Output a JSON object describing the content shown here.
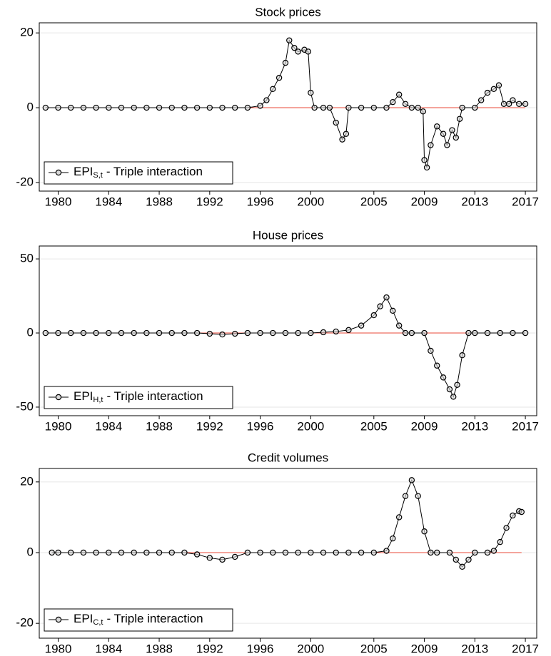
{
  "chart_data": [
    {
      "type": "line",
      "title": "Stock prices",
      "xlim": [
        1978.5,
        2017.9
      ],
      "xticks": [
        1980,
        1984,
        1988,
        1992,
        1996,
        2000,
        2005,
        2009,
        2013,
        2017
      ],
      "ylim": [
        -22.3,
        22.7
      ],
      "yticks": [
        -20,
        0,
        20
      ],
      "grid": true,
      "zero_line_color": "#e8483a",
      "legend": {
        "label": "EPI",
        "subscript": "S,t",
        "suffix": "- Triple interaction"
      },
      "series": [
        {
          "color": "#000000",
          "x": [
            1979,
            1980,
            1981,
            1982,
            1983,
            1984,
            1985,
            1986,
            1987,
            1988,
            1989,
            1990,
            1991,
            1992,
            1993,
            1994,
            1995,
            1996,
            1996.5,
            1997,
            1997.5,
            1998,
            1998.3,
            1998.7,
            1999,
            1999.5,
            1999.8,
            2000,
            2000.3,
            2001,
            2001.5,
            2002,
            2002.5,
            2002.8,
            2003,
            2004,
            2005,
            2006,
            2006.5,
            2007,
            2007.5,
            2008,
            2008.5,
            2008.9,
            2009,
            2009.2,
            2009.5,
            2010,
            2010.5,
            2010.8,
            2011.2,
            2011.5,
            2011.8,
            2012,
            2013,
            2013.5,
            2014,
            2014.5,
            2014.9,
            2015.3,
            2015.7,
            2016,
            2016.5,
            2017
          ],
          "values": [
            0,
            0,
            0,
            0,
            0,
            0,
            0,
            0,
            0,
            0,
            0,
            0,
            0,
            0,
            0,
            0,
            0,
            0.5,
            2,
            5,
            8,
            12,
            18,
            16,
            15,
            15.5,
            15,
            4,
            0,
            0,
            0,
            -4,
            -8.5,
            -7,
            0,
            0,
            0,
            0,
            1.5,
            3.5,
            1,
            0,
            0,
            -1,
            -14,
            -16,
            -10,
            -5,
            -7,
            -10,
            -6,
            -8,
            -3,
            0,
            0,
            2,
            4,
            5,
            6,
            1,
            1,
            2,
            1,
            1
          ]
        }
      ]
    },
    {
      "type": "line",
      "title": "House prices",
      "xlim": [
        1978.5,
        2017.9
      ],
      "xticks": [
        1980,
        1984,
        1988,
        1992,
        1996,
        2000,
        2005,
        2009,
        2013,
        2017
      ],
      "ylim": [
        -55.8,
        58.7
      ],
      "yticks": [
        -50,
        0,
        50
      ],
      "grid": true,
      "zero_line_color": "#e8483a",
      "legend": {
        "label": "EPI",
        "subscript": "H,t",
        "suffix": "- Triple interaction"
      },
      "series": [
        {
          "color": "#000000",
          "x": [
            1979,
            1980,
            1981,
            1982,
            1983,
            1984,
            1985,
            1986,
            1987,
            1988,
            1989,
            1990,
            1991,
            1992,
            1993,
            1994,
            1995,
            1996,
            1997,
            1998,
            1999,
            2000,
            2001,
            2002,
            2003,
            2004,
            2005,
            2005.5,
            2006,
            2006.5,
            2007,
            2007.5,
            2008,
            2009,
            2009.5,
            2010,
            2010.5,
            2011,
            2011.3,
            2011.6,
            2012,
            2012.5,
            2013,
            2014,
            2015,
            2016,
            2017
          ],
          "values": [
            0,
            0,
            0,
            0,
            0,
            0,
            0,
            0,
            0,
            0,
            0,
            0,
            0,
            -0.5,
            -1,
            -0.5,
            0,
            0,
            0,
            0,
            0,
            0,
            0.5,
            1,
            2,
            5,
            12,
            18,
            24,
            15,
            5,
            0,
            0,
            0,
            -12,
            -22,
            -30,
            -38,
            -43,
            -35,
            -15,
            0,
            0,
            0,
            0,
            0,
            0
          ]
        }
      ]
    },
    {
      "type": "line",
      "title": "Credit volumes",
      "xlim": [
        1978.5,
        2017.9
      ],
      "xticks": [
        1980,
        1984,
        1988,
        1992,
        1996,
        2000,
        2005,
        2009,
        2013,
        2017
      ],
      "ylim": [
        -24.2,
        23.8
      ],
      "yticks": [
        -20,
        0,
        20
      ],
      "grid": true,
      "zero_line_color": "#e8483a",
      "legend": {
        "label": "EPI",
        "subscript": "C,t",
        "suffix": "- Triple interaction"
      },
      "series": [
        {
          "color": "#000000",
          "x": [
            1979.5,
            1980,
            1981,
            1982,
            1983,
            1984,
            1985,
            1986,
            1987,
            1988,
            1989,
            1990,
            1991,
            1992,
            1993,
            1994,
            1995,
            1996,
            1997,
            1998,
            1999,
            2000,
            2001,
            2002,
            2003,
            2004,
            2005,
            2006,
            2006.5,
            2007,
            2007.5,
            2008,
            2008.5,
            2009,
            2009.5,
            2010,
            2011,
            2011.5,
            2012,
            2012.5,
            2013,
            2014,
            2014.5,
            2015,
            2015.5,
            2016,
            2016.5,
            2016.7
          ],
          "values": [
            0,
            0,
            0,
            0,
            0,
            0,
            0,
            0,
            0,
            0,
            0,
            0,
            -0.5,
            -1.5,
            -2,
            -1.2,
            0,
            0,
            0,
            0,
            0,
            0,
            0,
            0,
            0,
            0,
            0,
            0.5,
            4,
            10,
            16,
            20.5,
            16,
            6,
            0,
            0,
            0,
            -2,
            -4,
            -2,
            0,
            0,
            0.5,
            3,
            7,
            10.5,
            11.7,
            11.5
          ]
        }
      ]
    }
  ]
}
